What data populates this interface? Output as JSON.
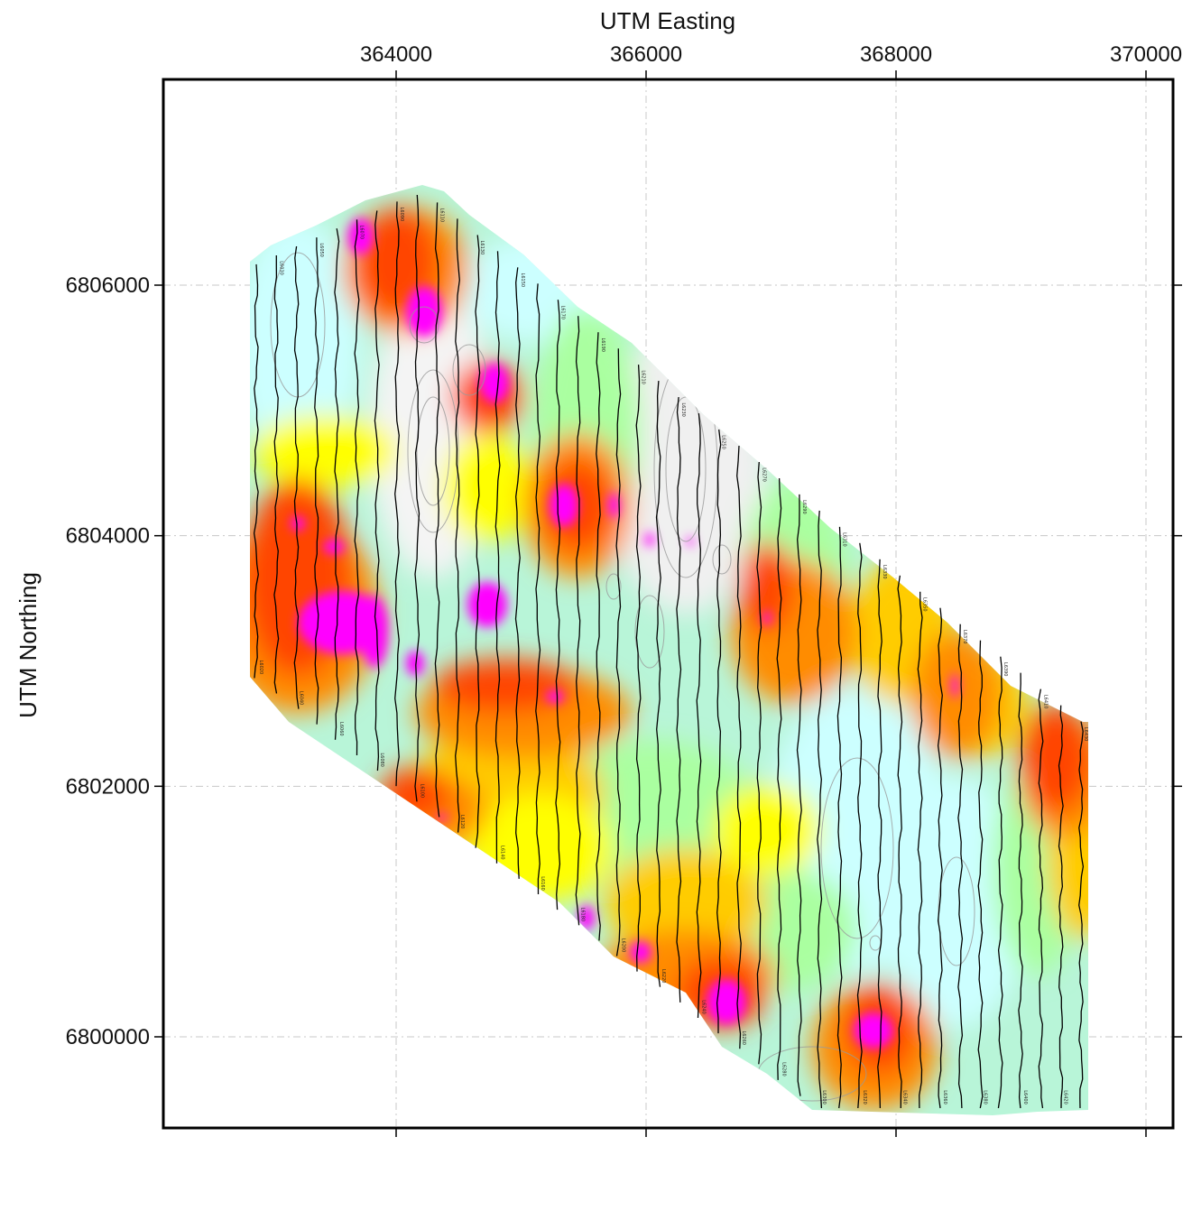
{
  "map": {
    "x_axis_title": "UTM Easting",
    "y_axis_title": "UTM Northing",
    "x_ticks": [
      "364000",
      "366000",
      "368000",
      "370000"
    ],
    "y_ticks": [
      "6806000",
      "6804000",
      "6802000",
      "6800000"
    ],
    "x_tick_values": [
      364000,
      366000,
      368000,
      370000
    ],
    "y_tick_values": [
      6806000,
      6804000,
      6802000,
      6800000
    ],
    "grid": true,
    "grid_style": "dash-dot",
    "colors": {
      "frame": "#000000",
      "grid": "#c8c8c8",
      "flight_line": "#000000",
      "contour": "#9a9a9a",
      "high": "#ff00ff",
      "red": "#ff4500",
      "orange": "#ff8c00",
      "gold": "#ffcc00",
      "yellow": "#ffff00",
      "green": "#aaffa0",
      "mint": "#b8f5d8",
      "cyan": "#ccffff",
      "low": "#f4f4f4"
    },
    "flight_line_labels": [
      "L6020",
      "L6030",
      "L6040",
      "L6050",
      "L6060",
      "L6070",
      "L6080",
      "L6090",
      "L6100",
      "L6110",
      "L6120",
      "L6130",
      "L6140",
      "L6150",
      "L6160",
      "L6170",
      "L6180",
      "L6190",
      "L6200",
      "L6210",
      "L6220",
      "L6230",
      "L6240",
      "L6250",
      "L6260",
      "L6270",
      "L6280",
      "L6290",
      "L6300",
      "L6310",
      "L6320",
      "L6330",
      "L6340",
      "L6350",
      "L6360",
      "L6370",
      "L6380",
      "L6390",
      "L6400",
      "L6410",
      "L6420",
      "L6430"
    ]
  }
}
